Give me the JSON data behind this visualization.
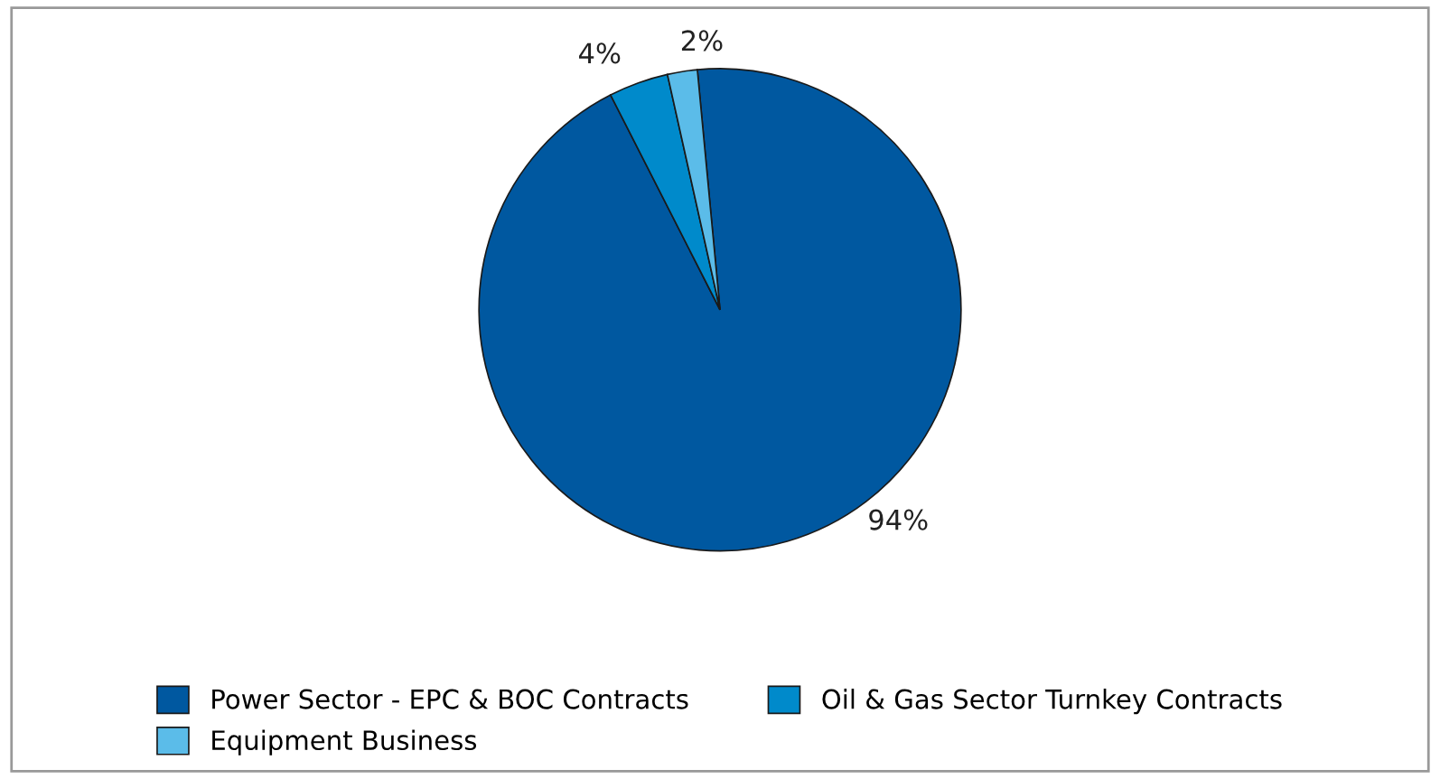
{
  "chart_data": {
    "type": "pie",
    "categories": [
      "Power Sector - EPC & BOC Contracts",
      "Oil & Gas Sector Turnkey Contracts",
      "Equipment Business"
    ],
    "values": [
      94,
      4,
      2
    ],
    "colors": [
      "#0058a0",
      "#008acb",
      "#5bbce9"
    ],
    "value_labels": [
      "94%",
      "4%",
      "2%"
    ],
    "legend": "bottom"
  }
}
